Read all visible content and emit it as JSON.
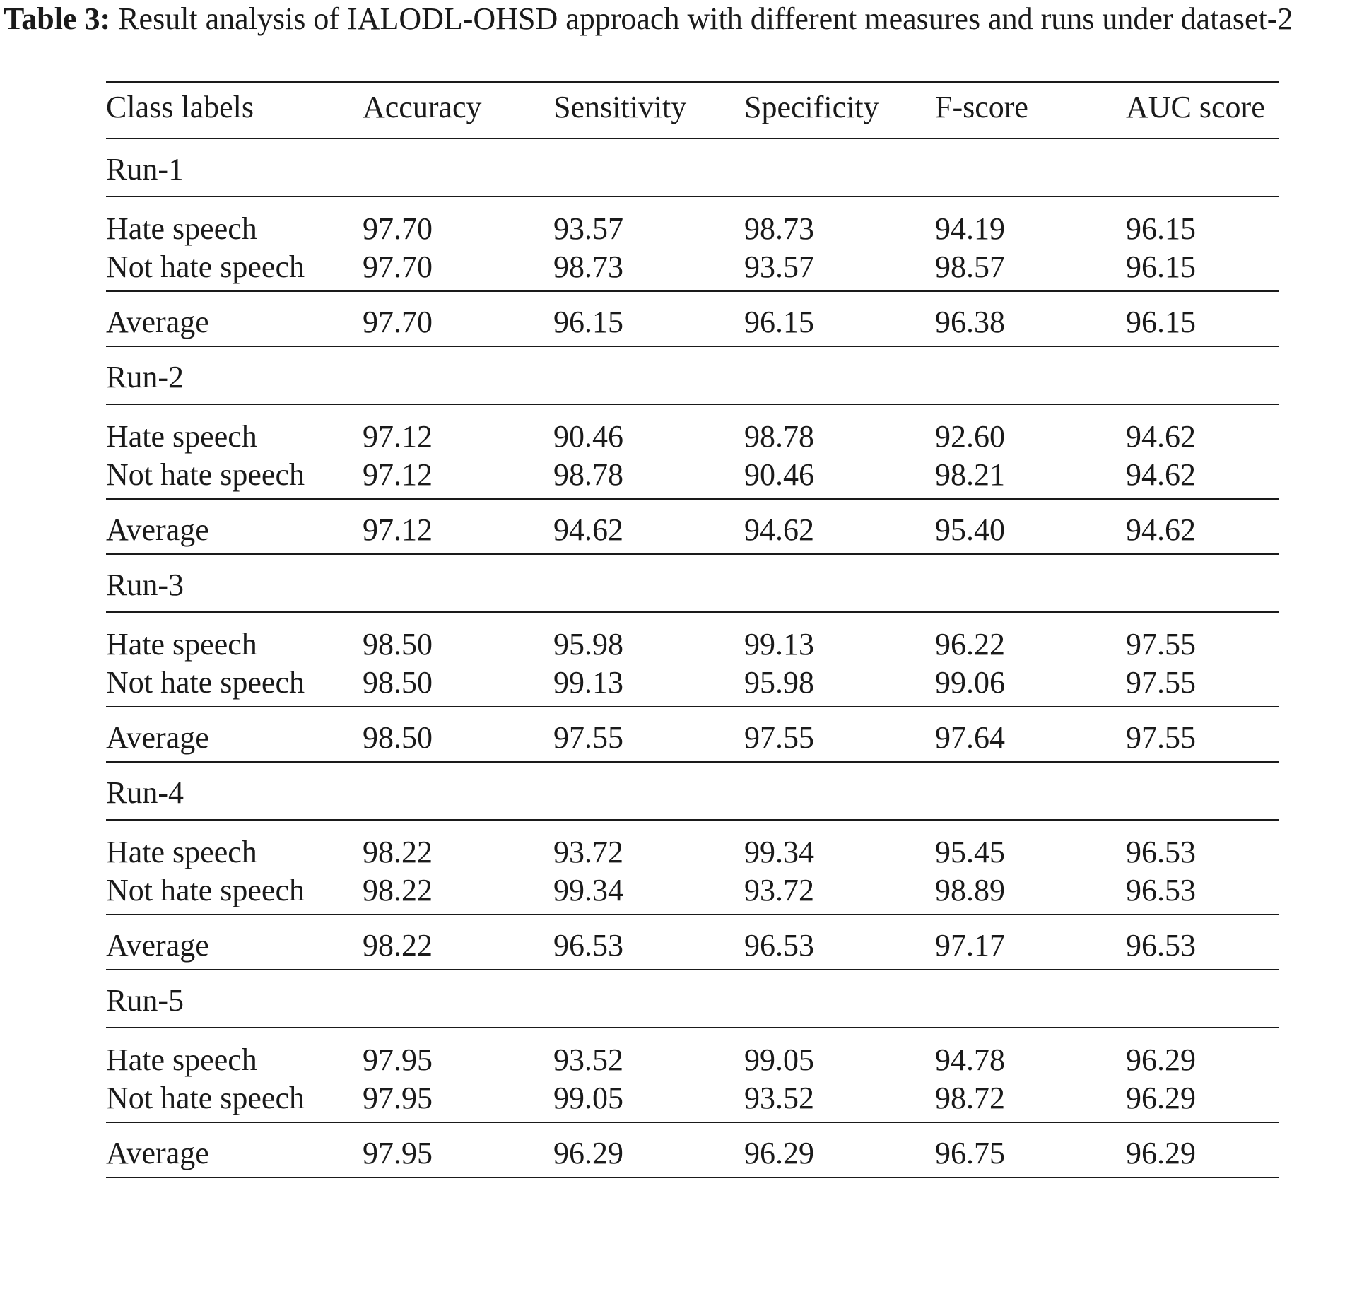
{
  "caption": {
    "label": "Table 3:",
    "text": "Result analysis of IALODL-OHSD approach with different measures and runs under dataset-2"
  },
  "table": {
    "headers": [
      "Class labels",
      "Accuracy",
      "Sensitivity",
      "Specificity",
      "F-score",
      "AUC score"
    ],
    "runs": [
      {
        "name": "Run-1",
        "rows": [
          {
            "label": "Hate speech",
            "values": [
              "97.70",
              "93.57",
              "98.73",
              "94.19",
              "96.15"
            ]
          },
          {
            "label": "Not hate speech",
            "values": [
              "97.70",
              "98.73",
              "93.57",
              "98.57",
              "96.15"
            ]
          }
        ],
        "average": {
          "label": "Average",
          "values": [
            "97.70",
            "96.15",
            "96.15",
            "96.38",
            "96.15"
          ]
        }
      },
      {
        "name": "Run-2",
        "rows": [
          {
            "label": "Hate speech",
            "values": [
              "97.12",
              "90.46",
              "98.78",
              "92.60",
              "94.62"
            ]
          },
          {
            "label": "Not hate speech",
            "values": [
              "97.12",
              "98.78",
              "90.46",
              "98.21",
              "94.62"
            ]
          }
        ],
        "average": {
          "label": "Average",
          "values": [
            "97.12",
            "94.62",
            "94.62",
            "95.40",
            "94.62"
          ]
        }
      },
      {
        "name": "Run-3",
        "rows": [
          {
            "label": "Hate speech",
            "values": [
              "98.50",
              "95.98",
              "99.13",
              "96.22",
              "97.55"
            ]
          },
          {
            "label": "Not hate speech",
            "values": [
              "98.50",
              "99.13",
              "95.98",
              "99.06",
              "97.55"
            ]
          }
        ],
        "average": {
          "label": "Average",
          "values": [
            "98.50",
            "97.55",
            "97.55",
            "97.64",
            "97.55"
          ]
        }
      },
      {
        "name": "Run-4",
        "rows": [
          {
            "label": "Hate speech",
            "values": [
              "98.22",
              "93.72",
              "99.34",
              "95.45",
              "96.53"
            ]
          },
          {
            "label": "Not hate speech",
            "values": [
              "98.22",
              "99.34",
              "93.72",
              "98.89",
              "96.53"
            ]
          }
        ],
        "average": {
          "label": "Average",
          "values": [
            "98.22",
            "96.53",
            "96.53",
            "97.17",
            "96.53"
          ]
        }
      },
      {
        "name": "Run-5",
        "rows": [
          {
            "label": "Hate speech",
            "values": [
              "97.95",
              "93.52",
              "99.05",
              "94.78",
              "96.29"
            ]
          },
          {
            "label": "Not hate speech",
            "values": [
              "97.95",
              "99.05",
              "93.52",
              "98.72",
              "96.29"
            ]
          }
        ],
        "average": {
          "label": "Average",
          "values": [
            "97.95",
            "96.29",
            "96.29",
            "96.75",
            "96.29"
          ]
        }
      }
    ]
  }
}
